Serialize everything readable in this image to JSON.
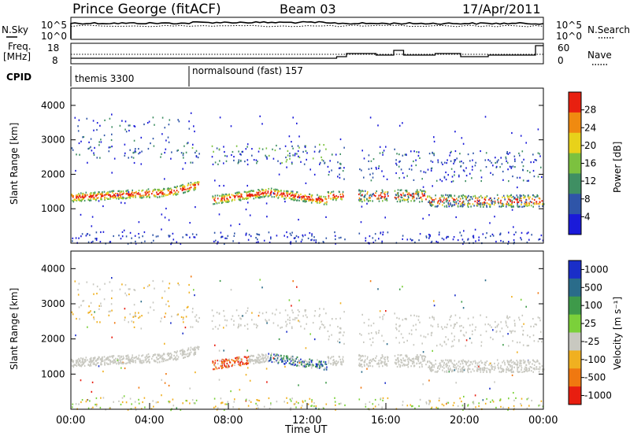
{
  "header": {
    "station": "Prince George (fitACF)",
    "beam": "Beam 03",
    "date": "17/Apr/2011"
  },
  "top_panels": {
    "nsky_label": "N.Sky",
    "nsearch_label": "N.Search",
    "nsky_ticks": [
      "10^5",
      "10^0"
    ],
    "freq_label_1": "Freq.",
    "freq_label_2": "[MHz]",
    "freq_ticks": [
      "18",
      "8"
    ],
    "nave_label": "Nave",
    "nave_ticks": [
      "60",
      "0"
    ],
    "cpid_label": "CPID",
    "cpid_1": "themis 3300",
    "cpid_2": "normalsound (fast) 157",
    "cpid_change_hour": 6.0
  },
  "chart_data": [
    {
      "type": "heatmap",
      "name": "power",
      "ylabel": "Slant Range [km]",
      "ylim": [
        0,
        4500
      ],
      "yticks": [
        1000,
        2000,
        3000,
        4000
      ],
      "xlim": [
        0,
        24
      ],
      "colorbar": {
        "label": "Power [dB]",
        "ticks": [
          "4",
          "8",
          "12",
          "16",
          "20",
          "24",
          "28"
        ],
        "colors": [
          "#1a1ad9",
          "#2f55a8",
          "#3f8f63",
          "#7cc13f",
          "#e8d21a",
          "#f08a10",
          "#e82010"
        ]
      }
    },
    {
      "type": "heatmap",
      "name": "velocity",
      "ylabel": "Slant Range [km]",
      "ylim": [
        0,
        4500
      ],
      "yticks": [
        1000,
        2000,
        3000,
        4000
      ],
      "xlim": [
        0,
        24
      ],
      "colorbar": {
        "label": "Velocity [m s⁻¹]",
        "ticks": [
          "1000",
          "500",
          "100",
          "25",
          "-25",
          "-100",
          "-500",
          "-1000"
        ],
        "colors": [
          "#1a2ec8",
          "#2a6c8a",
          "#3e9a4a",
          "#7bd03a",
          "#c8c8c0",
          "#f0b020",
          "#f07810",
          "#e81e10"
        ]
      }
    }
  ],
  "x_axis": {
    "ticks": [
      "00:00",
      "04:00",
      "08:00",
      "12:00",
      "16:00",
      "20:00",
      "00:00"
    ],
    "label": "Time UT"
  }
}
